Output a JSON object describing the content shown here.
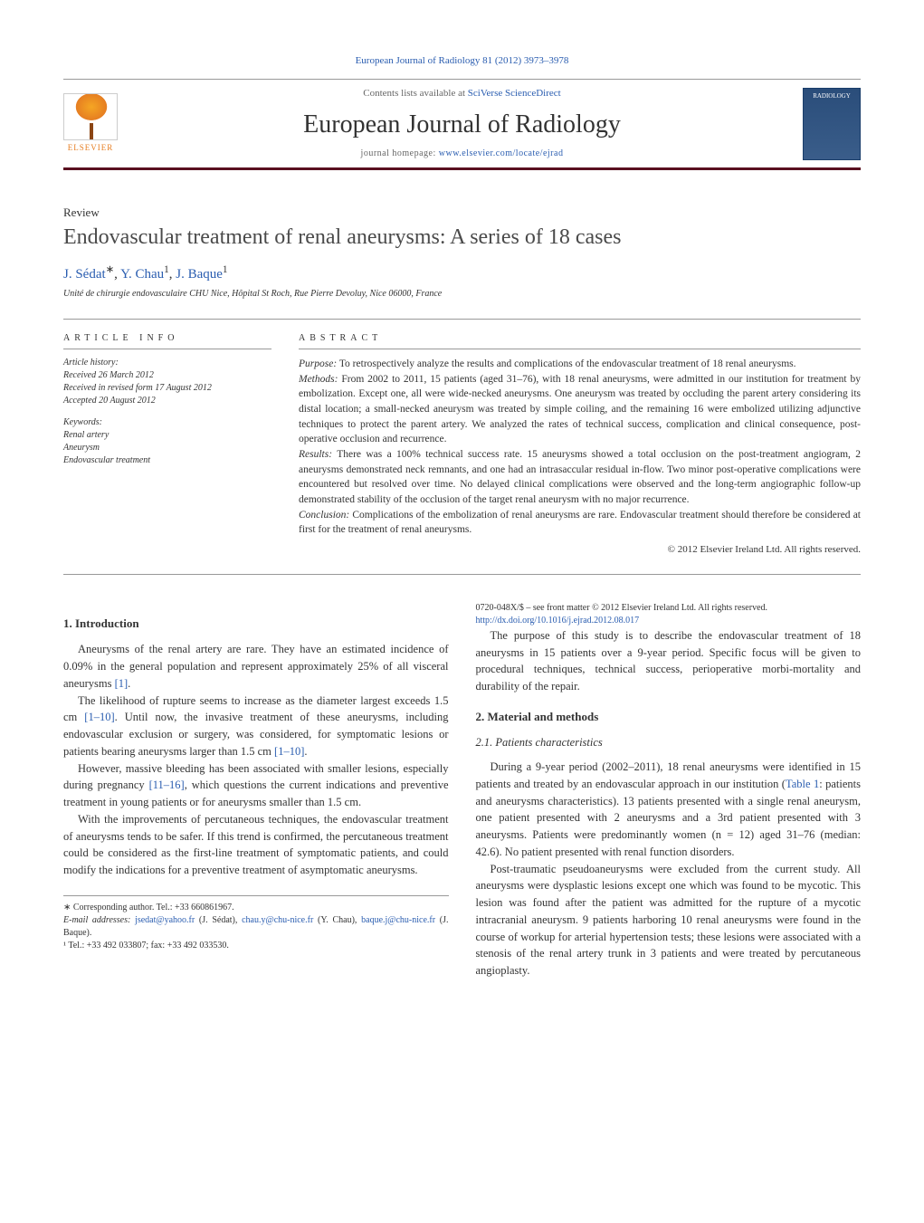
{
  "header": {
    "citation": "European Journal of Radiology 81 (2012) 3973–3978",
    "contents_prefix": "Contents lists available at ",
    "contents_link": "SciVerse ScienceDirect",
    "journal_title": "European Journal of Radiology",
    "homepage_prefix": "journal homepage: ",
    "homepage_link": "www.elsevier.com/locate/ejrad",
    "publisher_name": "ELSEVIER",
    "cover_text": "RADIOLOGY"
  },
  "article": {
    "type": "Review",
    "title": "Endovascular treatment of renal aneurysms: A series of 18 cases",
    "authors_html": "J. Sédat*, Y. Chau¹, J. Baque¹",
    "author1": "J. Sédat",
    "author1_sup": "∗",
    "author2": "Y. Chau",
    "author2_sup": "1",
    "author3": "J. Baque",
    "author3_sup": "1",
    "affiliation": "Unité de chirurgie endovasculaire CHU Nice, Hôpital St Roch, Rue Pierre Devoluy, Nice 06000, France"
  },
  "info": {
    "label": "article info",
    "history_label": "Article history:",
    "received": "Received 26 March 2012",
    "revised": "Received in revised form 17 August 2012",
    "accepted": "Accepted 20 August 2012",
    "keywords_label": "Keywords:",
    "kw1": "Renal artery",
    "kw2": "Aneurysm",
    "kw3": "Endovascular treatment"
  },
  "abstract": {
    "label": "abstract",
    "purpose_label": "Purpose:",
    "purpose": " To retrospectively analyze the results and complications of the endovascular treatment of 18 renal aneurysms.",
    "methods_label": "Methods:",
    "methods": " From 2002 to 2011, 15 patients (aged 31–76), with 18 renal aneurysms, were admitted in our institution for treatment by embolization. Except one, all were wide-necked aneurysms. One aneurysm was treated by occluding the parent artery considering its distal location; a small-necked aneurysm was treated by simple coiling, and the remaining 16 were embolized utilizing adjunctive techniques to protect the parent artery. We analyzed the rates of technical success, complication and clinical consequence, post-operative occlusion and recurrence.",
    "results_label": "Results:",
    "results": " There was a 100% technical success rate. 15 aneurysms showed a total occlusion on the post-treatment angiogram, 2 aneurysms demonstrated neck remnants, and one had an intrasaccular residual in-flow. Two minor post-operative complications were encountered but resolved over time. No delayed clinical complications were observed and the long-term angiographic follow-up demonstrated stability of the occlusion of the target renal aneurysm with no major recurrence.",
    "conclusion_label": "Conclusion:",
    "conclusion": " Complications of the embolization of renal aneurysms are rare. Endovascular treatment should therefore be considered at first for the treatment of renal aneurysms.",
    "copyright": "© 2012 Elsevier Ireland Ltd. All rights reserved."
  },
  "body": {
    "intro_heading": "1. Introduction",
    "intro_p1a": "Aneurysms of the renal artery are rare. They have an estimated incidence of 0.09% in the general population and represent approximately 25% of all visceral aneurysms ",
    "intro_p1_ref": "[1]",
    "intro_p1b": ".",
    "intro_p2a": "The likelihood of rupture seems to increase as the diameter largest exceeds 1.5 cm ",
    "intro_p2_ref1": "[1–10]",
    "intro_p2b": ". Until now, the invasive treatment of these aneurysms, including endovascular exclusion or surgery, was considered, for symptomatic lesions or patients bearing aneurysms larger than 1.5 cm ",
    "intro_p2_ref2": "[1–10]",
    "intro_p2c": ".",
    "intro_p3a": "However, massive bleeding has been associated with smaller lesions, especially during pregnancy ",
    "intro_p3_ref": "[11–16]",
    "intro_p3b": ", which questions the current indications and preventive treatment in young patients or for aneurysms smaller than 1.5 cm.",
    "intro_p4": "With the improvements of percutaneous techniques, the endovascular treatment of aneurysms tends to be safer. If this trend is confirmed, the percutaneous treatment could be considered as the first-line treatment of symptomatic patients, and could modify the indications for a preventive treatment of asymptomatic aneurysms.",
    "intro_p5": "The purpose of this study is to describe the endovascular treatment of 18 aneurysms in 15 patients over a 9-year period. Specific focus will be given to procedural techniques, technical success, perioperative morbi-mortality and durability of the repair.",
    "methods_heading": "2. Material and methods",
    "patients_heading": "2.1. Patients characteristics",
    "methods_p1a": "During a 9-year period (2002–2011), 18 renal aneurysms were identified in 15 patients and treated by an endovascular approach in our institution (",
    "methods_p1_ref": "Table 1",
    "methods_p1b": ": patients and aneurysms characteristics). 13 patients presented with a single renal aneurysm, one patient presented with 2 aneurysms and a 3rd patient presented with 3 aneurysms. Patients were predominantly women (n = 12) aged 31–76 (median: 42.6). No patient presented with renal function disorders.",
    "methods_p2": "Post-traumatic pseudoaneurysms were excluded from the current study. All aneurysms were dysplastic lesions except one which was found to be mycotic. This lesion was found after the patient was admitted for the rupture of a mycotic intracranial aneurysm. 9 patients harboring 10 renal aneurysms were found in the course of workup for arterial hypertension tests; these lesions were associated with a stenosis of the renal artery trunk in 3 patients and were treated by percutaneous angioplasty."
  },
  "footnotes": {
    "corr_label": "∗ Corresponding author. Tel.: +33 660861967.",
    "email_label": "E-mail addresses:",
    "email1": "jsedat@yahoo.fr",
    "email1_who": " (J. Sédat), ",
    "email2": "chau.y@chu-nice.fr",
    "email2_who": " (Y. Chau), ",
    "email3": "baque.j@chu-nice.fr",
    "email3_who": " (J. Baque).",
    "tel1": "¹ Tel.: +33 492 033807; fax: +33 492 033530."
  },
  "footer": {
    "issn": "0720-048X/$ – see front matter © 2012 Elsevier Ireland Ltd. All rights reserved.",
    "doi": "http://dx.doi.org/10.1016/j.ejrad.2012.08.017"
  },
  "colors": {
    "link": "#2a5db0",
    "rule": "#5a1020",
    "elsevier_orange": "#e67e22",
    "cover_bg": "#2a4d7a"
  }
}
